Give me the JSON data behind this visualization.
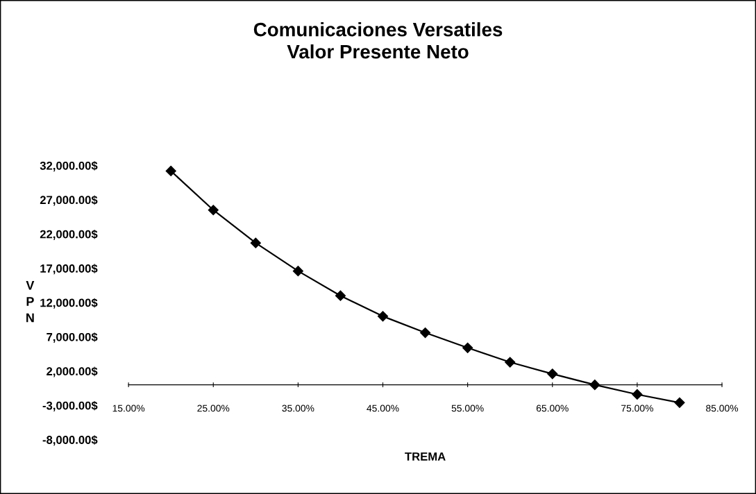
{
  "chart_data": {
    "type": "line",
    "title": "Comunicaciones Versatiles\nValor Presente Neto",
    "xlabel": "TREMA",
    "ylabel": "V\nP\nN",
    "x": [
      20,
      25,
      30,
      35,
      40,
      45,
      50,
      55,
      60,
      65,
      70,
      75,
      80
    ],
    "series": [
      {
        "color": "#000000",
        "values": [
          31200,
          25500,
          20700,
          16600,
          13000,
          10000,
          7600,
          5400,
          3300,
          1600,
          0,
          -1400,
          -2600
        ]
      }
    ],
    "xlim": [
      15,
      85
    ],
    "xticks": [
      {
        "value": 15,
        "label": "15.00%"
      },
      {
        "value": 25,
        "label": "25.00%"
      },
      {
        "value": 35,
        "label": "35.00%"
      },
      {
        "value": 45,
        "label": "45.00%"
      },
      {
        "value": 55,
        "label": "55.00%"
      },
      {
        "value": 65,
        "label": "65.00%"
      },
      {
        "value": 75,
        "label": "75.00%"
      },
      {
        "value": 85,
        "label": "85.00%"
      }
    ],
    "ylim": [
      -8000,
      32000
    ],
    "yticks": [
      {
        "value": -8000,
        "label": "-8,000.00$"
      },
      {
        "value": -3000,
        "label": "-3,000.00$"
      },
      {
        "value": 2000,
        "label": "2,000.00$"
      },
      {
        "value": 7000,
        "label": "7,000.00$"
      },
      {
        "value": 12000,
        "label": "12,000.00$"
      },
      {
        "value": 17000,
        "label": "17,000.00$"
      },
      {
        "value": 22000,
        "label": "22,000.00$"
      },
      {
        "value": 27000,
        "label": "27,000.00$"
      },
      {
        "value": 32000,
        "label": "32,000.00$"
      }
    ],
    "grid": false,
    "legend": false,
    "marker": "diamond",
    "line_style": "solid"
  }
}
